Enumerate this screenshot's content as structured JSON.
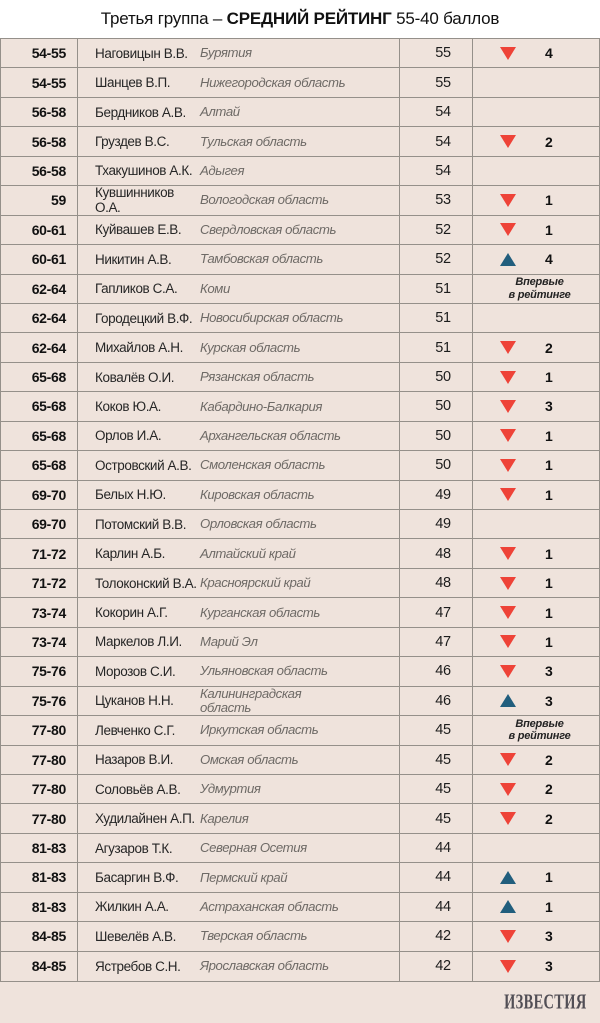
{
  "title": {
    "prefix": "Третья группа – ",
    "bold": "СРЕДНИЙ РЕЙТИНГ",
    "suffix": " 55-40 баллов"
  },
  "labels": {
    "first_time": "Впервые\nв рейтинге"
  },
  "footer": {
    "logo": "ИЗВЕСТИЯ"
  },
  "colors": {
    "table_background": "#efe3dc",
    "grid_line": "#95908a",
    "trend_down_red": "#ee4338",
    "trend_up_blue": "#215e7d",
    "region_text": "#6e6a66",
    "logo_text": "#514e55"
  },
  "chart_data": {
    "type": "table",
    "title": "Третья группа – СРЕДНИЙ РЕЙТИНГ 55-40 баллов",
    "rows": [
      {
        "rank": "54-55",
        "name": "Наговицын В.В.",
        "region": "Бурятия",
        "score": "55",
        "trend": "down",
        "delta": "4"
      },
      {
        "rank": "54-55",
        "name": "Шанцев В.П.",
        "region": "Нижегородская область",
        "score": "55",
        "trend": "none",
        "delta": ""
      },
      {
        "rank": "56-58",
        "name": "Бердников А.В.",
        "region": "Алтай",
        "score": "54",
        "trend": "none",
        "delta": ""
      },
      {
        "rank": "56-58",
        "name": "Груздев В.С.",
        "region": "Тульская область",
        "score": "54",
        "trend": "down",
        "delta": "2"
      },
      {
        "rank": "56-58",
        "name": "Тхакушинов А.К.",
        "region": "Адыгея",
        "score": "54",
        "trend": "none",
        "delta": ""
      },
      {
        "rank": "59",
        "name": "Кувшинников О.А.",
        "region": "Вологодская область",
        "score": "53",
        "trend": "down",
        "delta": "1"
      },
      {
        "rank": "60-61",
        "name": "Куйвашев Е.В.",
        "region": "Свердловская область",
        "score": "52",
        "trend": "down",
        "delta": "1"
      },
      {
        "rank": "60-61",
        "name": "Никитин А.В.",
        "region": "Тамбовская область",
        "score": "52",
        "trend": "up",
        "delta": "4"
      },
      {
        "rank": "62-64",
        "name": "Гапликов С.А.",
        "region": "Коми",
        "score": "51",
        "trend": "first",
        "delta": ""
      },
      {
        "rank": "62-64",
        "name": "Городецкий В.Ф.",
        "region": "Новосибирская область",
        "score": "51",
        "trend": "none",
        "delta": ""
      },
      {
        "rank": "62-64",
        "name": "Михайлов А.Н.",
        "region": "Курская область",
        "score": "51",
        "trend": "down",
        "delta": "2"
      },
      {
        "rank": "65-68",
        "name": "Ковалёв О.И.",
        "region": "Рязанская область",
        "score": "50",
        "trend": "down",
        "delta": "1"
      },
      {
        "rank": "65-68",
        "name": "Коков Ю.А.",
        "region": "Кабардино-Балкария",
        "score": "50",
        "trend": "down",
        "delta": "3"
      },
      {
        "rank": "65-68",
        "name": "Орлов И.А.",
        "region": "Архангельская область",
        "score": "50",
        "trend": "down",
        "delta": "1"
      },
      {
        "rank": "65-68",
        "name": "Островский А.В.",
        "region": "Смоленская область",
        "score": "50",
        "trend": "down",
        "delta": "1"
      },
      {
        "rank": "69-70",
        "name": "Белых Н.Ю.",
        "region": "Кировская область",
        "score": "49",
        "trend": "down",
        "delta": "1"
      },
      {
        "rank": "69-70",
        "name": "Потомский В.В.",
        "region": "Орловская область",
        "score": "49",
        "trend": "none",
        "delta": ""
      },
      {
        "rank": "71-72",
        "name": "Карлин А.Б.",
        "region": "Алтайский край",
        "score": "48",
        "trend": "down",
        "delta": "1"
      },
      {
        "rank": "71-72",
        "name": "Толоконский В.А.",
        "region": "Красноярский край",
        "score": "48",
        "trend": "down",
        "delta": "1"
      },
      {
        "rank": "73-74",
        "name": "Кокорин А.Г.",
        "region": "Курганская область",
        "score": "47",
        "trend": "down",
        "delta": "1"
      },
      {
        "rank": "73-74",
        "name": "Маркелов Л.И.",
        "region": "Марий Эл",
        "score": "47",
        "trend": "down",
        "delta": "1"
      },
      {
        "rank": "75-76",
        "name": "Морозов С.И.",
        "region": "Ульяновская область",
        "score": "46",
        "trend": "down",
        "delta": "3"
      },
      {
        "rank": "75-76",
        "name": "Цуканов Н.Н.",
        "region": "Калининградская\nобласть",
        "score": "46",
        "trend": "up",
        "delta": "3"
      },
      {
        "rank": "77-80",
        "name": "Левченко С.Г.",
        "region": "Иркутская область",
        "score": "45",
        "trend": "first",
        "delta": ""
      },
      {
        "rank": "77-80",
        "name": "Назаров В.И.",
        "region": "Омская область",
        "score": "45",
        "trend": "down",
        "delta": "2"
      },
      {
        "rank": "77-80",
        "name": "Соловьёв А.В.",
        "region": "Удмуртия",
        "score": "45",
        "trend": "down",
        "delta": "2"
      },
      {
        "rank": "77-80",
        "name": "Худилайнен А.П.",
        "region": "Карелия",
        "score": "45",
        "trend": "down",
        "delta": "2"
      },
      {
        "rank": "81-83",
        "name": "Агузаров Т.К.",
        "region": "Северная Осетия",
        "score": "44",
        "trend": "none",
        "delta": ""
      },
      {
        "rank": "81-83",
        "name": "Басаргин В.Ф.",
        "region": "Пермский край",
        "score": "44",
        "trend": "up",
        "delta": "1"
      },
      {
        "rank": "81-83",
        "name": "Жилкин А.А.",
        "region": "Астраханская область",
        "score": "44",
        "trend": "up",
        "delta": "1"
      },
      {
        "rank": "84-85",
        "name": "Шевелёв А.В.",
        "region": "Тверская область",
        "score": "42",
        "trend": "down",
        "delta": "3"
      },
      {
        "rank": "84-85",
        "name": "Ястребов С.Н.",
        "region": "Ярославская область",
        "score": "42",
        "trend": "down",
        "delta": "3"
      }
    ]
  }
}
